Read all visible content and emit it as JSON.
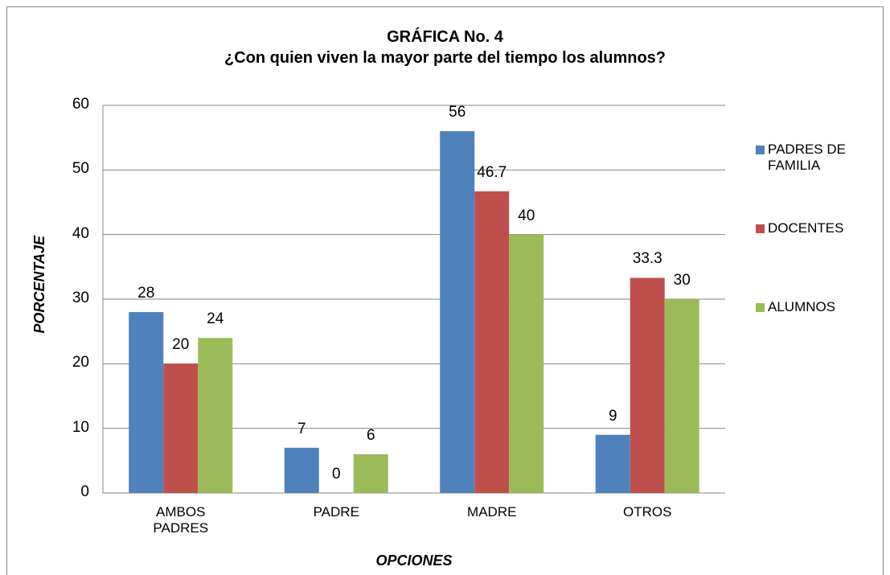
{
  "chart_data": {
    "type": "bar",
    "title": "GRÁFICA No. 4",
    "subtitle": "¿Con quien viven la mayor parte del tiempo los alumnos?",
    "x_label": "OPCIONES",
    "y_label": "PORCENTAJE",
    "categories": [
      "AMBOS PADRES",
      "PADRE",
      "MADRE",
      "OTROS"
    ],
    "series": [
      {
        "name": "PADRES DE FAMILIA",
        "color": "#4f81bd",
        "values": [
          28,
          7,
          56,
          9
        ]
      },
      {
        "name": "DOCENTES",
        "color": "#c0504d",
        "values": [
          20,
          0,
          46.7,
          33.3
        ]
      },
      {
        "name": "ALUMNOS",
        "color": "#9bbb59",
        "values": [
          24,
          6,
          40,
          30
        ]
      }
    ],
    "ylim": [
      0,
      60
    ],
    "yticks": [
      0,
      10,
      20,
      30,
      40,
      50,
      60
    ],
    "grid": true,
    "legend": "right"
  }
}
